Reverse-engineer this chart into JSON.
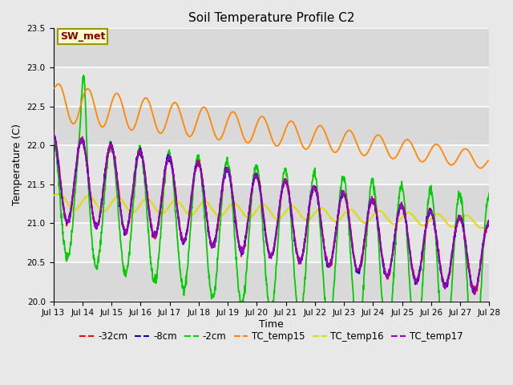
{
  "title": "Soil Temperature Profile C2",
  "xlabel": "Time",
  "ylabel": "Temperature (C)",
  "ylim": [
    20.0,
    23.5
  ],
  "background_color": "#e8e8e8",
  "plot_bg_color": "#e8e8e8",
  "inner_bg_color": "#d8d8d8",
  "grid_color": "#ffffff",
  "annotation_text": "SW_met",
  "annotation_bg": "#ffffcc",
  "annotation_border": "#999900",
  "annotation_text_color": "#880000",
  "series_colors": {
    "-32cm": "#ff0000",
    "-8cm": "#0000bb",
    "-2cm": "#00cc00",
    "TC_temp15": "#ff8800",
    "TC_temp16": "#dddd00",
    "TC_temp17": "#9900bb"
  },
  "legend_labels": [
    "-32cm",
    "-8cm",
    "-2cm",
    "TC_temp15",
    "TC_temp16",
    "TC_temp17"
  ],
  "x_tick_labels": [
    "Jul 13",
    "Jul 14",
    "Jul 15",
    "Jul 16",
    "Jul 17",
    "Jul 18",
    "Jul 19",
    "Jul 20",
    "Jul 21",
    "Jul 22",
    "Jul 23",
    "Jul 24",
    "Jul 25",
    "Jul 26",
    "Jul 27",
    "Jul 28"
  ],
  "n_points": 1500,
  "duration_days": 15,
  "start_day": 13,
  "figsize": [
    6.4,
    4.8
  ],
  "dpi": 100
}
